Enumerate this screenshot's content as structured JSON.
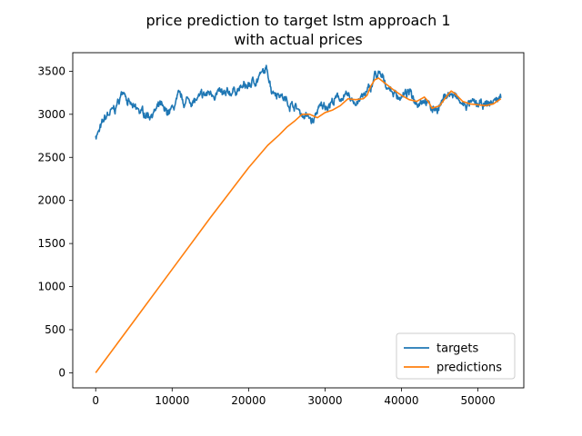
{
  "chart_data": {
    "type": "line",
    "title": "price prediction to target lstm approach 1",
    "subtitle": "with actual prices",
    "xlabel": "",
    "ylabel": "",
    "xlim": [
      -3000,
      56000
    ],
    "ylim": [
      -175,
      3715
    ],
    "x_ticks": [
      0,
      10000,
      20000,
      30000,
      40000,
      50000
    ],
    "y_ticks": [
      0,
      500,
      1000,
      1500,
      2000,
      2500,
      3000,
      3500
    ],
    "grid": false,
    "legend_position": "lower right",
    "series": [
      {
        "name": "targets",
        "color": "#1f77b4",
        "noise": true,
        "x": [
          0,
          500,
          1000,
          1500,
          2500,
          3000,
          3500,
          3800,
          4200,
          5000,
          6000,
          7000,
          8000,
          8500,
          9000,
          10000,
          11000,
          11500,
          12000,
          13000,
          14000,
          15000,
          16000,
          17000,
          18000,
          19000,
          20000,
          21000,
          21500,
          22000,
          22500,
          23000,
          24000,
          25000,
          26000,
          27000,
          28000,
          28500,
          29000,
          30000,
          31000,
          32000,
          33000,
          34000,
          35000,
          36000,
          36500,
          37000,
          38000,
          39000,
          40000,
          41000,
          42000,
          43000,
          44000,
          45000,
          46000,
          47000,
          48000,
          49000,
          50000,
          51000,
          52000,
          53000
        ],
        "values": [
          2760,
          2800,
          2900,
          2980,
          3050,
          3150,
          3250,
          3300,
          3150,
          3050,
          3020,
          3000,
          3050,
          3100,
          3000,
          3050,
          3200,
          3120,
          3170,
          3150,
          3200,
          3250,
          3250,
          3200,
          3280,
          3300,
          3330,
          3400,
          3450,
          3480,
          3500,
          3300,
          3250,
          3150,
          3100,
          3000,
          2950,
          2900,
          3050,
          3100,
          3150,
          3200,
          3180,
          3150,
          3200,
          3300,
          3450,
          3450,
          3350,
          3250,
          3200,
          3250,
          3150,
          3200,
          3050,
          3100,
          3250,
          3200,
          3100,
          3120,
          3100,
          3100,
          3150,
          3200
        ]
      },
      {
        "name": "predictions",
        "color": "#ff7f0e",
        "noise": false,
        "x": [
          0,
          5000,
          10000,
          15000,
          20000,
          22500,
          24000,
          25000,
          26000,
          27000,
          28000,
          29000,
          30000,
          31000,
          32000,
          33000,
          34000,
          35000,
          35500,
          36000,
          36500,
          37000,
          38000,
          39000,
          40000,
          41000,
          42000,
          43000,
          43500,
          44000,
          45000,
          46000,
          46500,
          47000,
          48000,
          49000,
          50000,
          51000,
          52000,
          53000
        ],
        "values": [
          0,
          600,
          1200,
          1800,
          2380,
          2640,
          2760,
          2850,
          2920,
          3000,
          3000,
          2960,
          3020,
          3050,
          3100,
          3180,
          3170,
          3180,
          3220,
          3330,
          3400,
          3420,
          3350,
          3280,
          3220,
          3170,
          3150,
          3200,
          3150,
          3070,
          3100,
          3220,
          3270,
          3240,
          3150,
          3120,
          3110,
          3100,
          3120,
          3180
        ]
      }
    ]
  }
}
